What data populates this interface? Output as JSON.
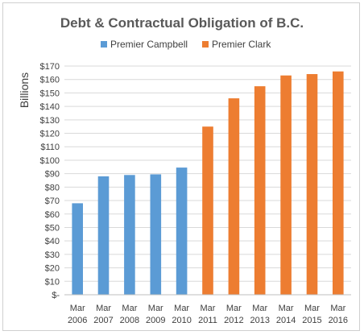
{
  "chart_data": {
    "type": "bar",
    "title": "Debt & Contractual Obligation of B.C.",
    "ylabel": "Billions",
    "xlabel": "",
    "ylim": [
      0,
      170
    ],
    "y_tick_step": 10,
    "y_tick_labels": [
      "$-",
      "$10",
      "$20",
      "$30",
      "$40",
      "$50",
      "$60",
      "$70",
      "$80",
      "$90",
      "$100",
      "$110",
      "$120",
      "$130",
      "$140",
      "$150",
      "$160",
      "$170"
    ],
    "grid": true,
    "legend_position": "top",
    "categories": [
      [
        "Mar",
        "2006"
      ],
      [
        "Mar",
        "2007"
      ],
      [
        "Mar",
        "2008"
      ],
      [
        "Mar",
        "2009"
      ],
      [
        "Mar",
        "2010"
      ],
      [
        "Mar",
        "2011"
      ],
      [
        "Mar",
        "2012"
      ],
      [
        "Mar",
        "2013"
      ],
      [
        "Mar",
        "2014"
      ],
      [
        "Mar",
        "2015"
      ],
      [
        "Mar",
        "2016"
      ]
    ],
    "series": [
      {
        "name": "Premier Campbell",
        "color": "#5b9bd5",
        "values": [
          68,
          88,
          89,
          89.5,
          94.5,
          null,
          null,
          null,
          null,
          null,
          null
        ]
      },
      {
        "name": "Premier Clark",
        "color": "#ed7d31",
        "values": [
          null,
          null,
          null,
          null,
          null,
          125,
          146,
          155,
          163,
          164,
          166
        ]
      }
    ]
  }
}
